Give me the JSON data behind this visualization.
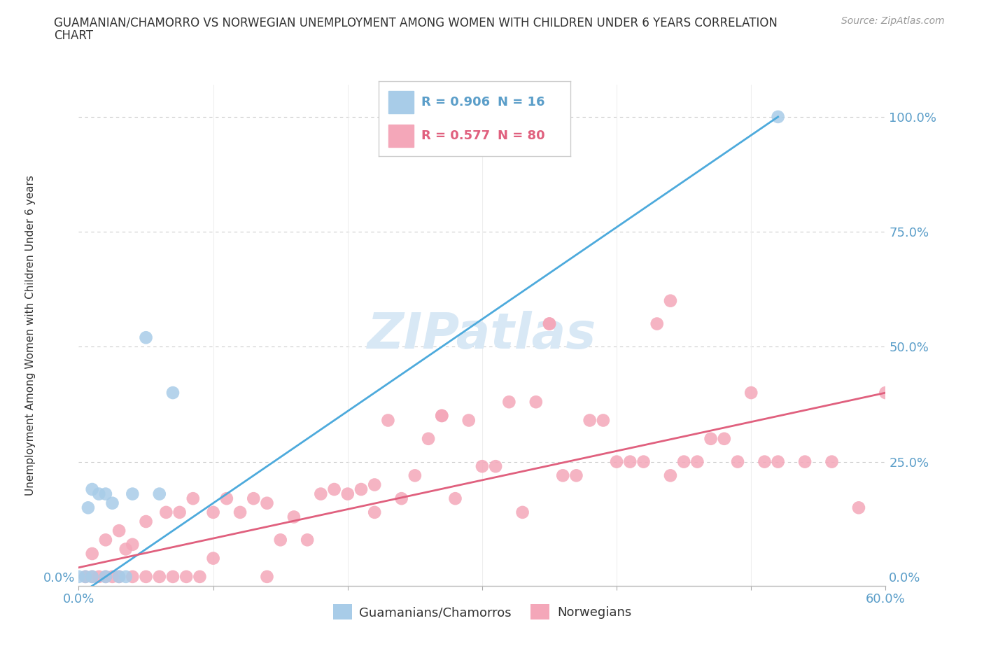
{
  "title_line1": "GUAMANIAN/CHAMORRO VS NORWEGIAN UNEMPLOYMENT AMONG WOMEN WITH CHILDREN UNDER 6 YEARS CORRELATION",
  "title_line2": "CHART",
  "source": "Source: ZipAtlas.com",
  "ylabel": "Unemployment Among Women with Children Under 6 years",
  "xlim": [
    0.0,
    0.6
  ],
  "ylim": [
    -0.02,
    1.07
  ],
  "yticks_right": [
    0.0,
    0.25,
    0.5,
    0.75,
    1.0
  ],
  "yticklabels_right": [
    "0.0%",
    "25.0%",
    "50.0%",
    "75.0%",
    "100.0%"
  ],
  "xtick_positions": [
    0.0,
    0.1,
    0.2,
    0.3,
    0.4,
    0.5,
    0.6
  ],
  "xticklabels": [
    "0.0%",
    "",
    "",
    "",
    "",
    "",
    "60.0%"
  ],
  "guamanian_R": 0.906,
  "guamanian_N": 16,
  "norwegian_R": 0.577,
  "norwegian_N": 80,
  "blue_scatter_color": "#A8CCE8",
  "pink_scatter_color": "#F4A7B9",
  "blue_line_color": "#4DAADC",
  "pink_line_color": "#E0607E",
  "blue_text_color": "#5B9EC9",
  "pink_text_color": "#E0607E",
  "axis_color": "#5B9EC9",
  "title_color": "#333333",
  "ylabel_color": "#333333",
  "source_color": "#999999",
  "watermark_color": "#D8E8F5",
  "grid_color": "#CCCCCC",
  "legend_border_color": "#CCCCCC",
  "background_color": "#FFFFFF",
  "guamanian_x": [
    0.0,
    0.005,
    0.007,
    0.01,
    0.01,
    0.015,
    0.02,
    0.02,
    0.025,
    0.03,
    0.035,
    0.04,
    0.05,
    0.06,
    0.07,
    0.52
  ],
  "guamanian_y": [
    0.0,
    0.0,
    0.15,
    0.0,
    0.19,
    0.18,
    0.0,
    0.18,
    0.16,
    0.0,
    0.0,
    0.18,
    0.52,
    0.18,
    0.4,
    1.0
  ],
  "norwegian_x": [
    0.0,
    0.005,
    0.01,
    0.01,
    0.015,
    0.02,
    0.02,
    0.025,
    0.03,
    0.03,
    0.035,
    0.04,
    0.04,
    0.05,
    0.05,
    0.06,
    0.065,
    0.07,
    0.075,
    0.08,
    0.085,
    0.09,
    0.1,
    0.1,
    0.11,
    0.12,
    0.13,
    0.14,
    0.14,
    0.15,
    0.16,
    0.17,
    0.18,
    0.19,
    0.2,
    0.21,
    0.22,
    0.22,
    0.23,
    0.24,
    0.25,
    0.26,
    0.27,
    0.27,
    0.28,
    0.29,
    0.3,
    0.31,
    0.32,
    0.33,
    0.34,
    0.35,
    0.35,
    0.36,
    0.37,
    0.38,
    0.39,
    0.4,
    0.41,
    0.42,
    0.43,
    0.44,
    0.44,
    0.45,
    0.46,
    0.47,
    0.48,
    0.49,
    0.5,
    0.51,
    0.52,
    0.54,
    0.56,
    0.58,
    0.6,
    0.0,
    0.0,
    0.0,
    0.0,
    0.0
  ],
  "norwegian_y": [
    0.0,
    0.0,
    0.0,
    0.05,
    0.0,
    0.0,
    0.08,
    0.0,
    0.0,
    0.1,
    0.06,
    0.0,
    0.07,
    0.0,
    0.12,
    0.0,
    0.14,
    0.0,
    0.14,
    0.0,
    0.17,
    0.0,
    0.04,
    0.14,
    0.17,
    0.14,
    0.17,
    0.0,
    0.16,
    0.08,
    0.13,
    0.08,
    0.18,
    0.19,
    0.18,
    0.19,
    0.2,
    0.14,
    0.34,
    0.17,
    0.22,
    0.3,
    0.35,
    0.35,
    0.17,
    0.34,
    0.24,
    0.24,
    0.38,
    0.14,
    0.38,
    0.55,
    0.55,
    0.22,
    0.22,
    0.34,
    0.34,
    0.25,
    0.25,
    0.25,
    0.55,
    0.22,
    0.6,
    0.25,
    0.25,
    0.3,
    0.3,
    0.25,
    0.4,
    0.25,
    0.25,
    0.25,
    0.25,
    0.15,
    0.4,
    0.0,
    0.0,
    0.0,
    0.0,
    0.0
  ],
  "blue_line_x0": 0.0,
  "blue_line_y0": -0.04,
  "blue_line_x1": 0.52,
  "blue_line_y1": 1.0,
  "pink_line_x0": 0.0,
  "pink_line_y0": 0.02,
  "pink_line_x1": 0.6,
  "pink_line_y1": 0.4
}
